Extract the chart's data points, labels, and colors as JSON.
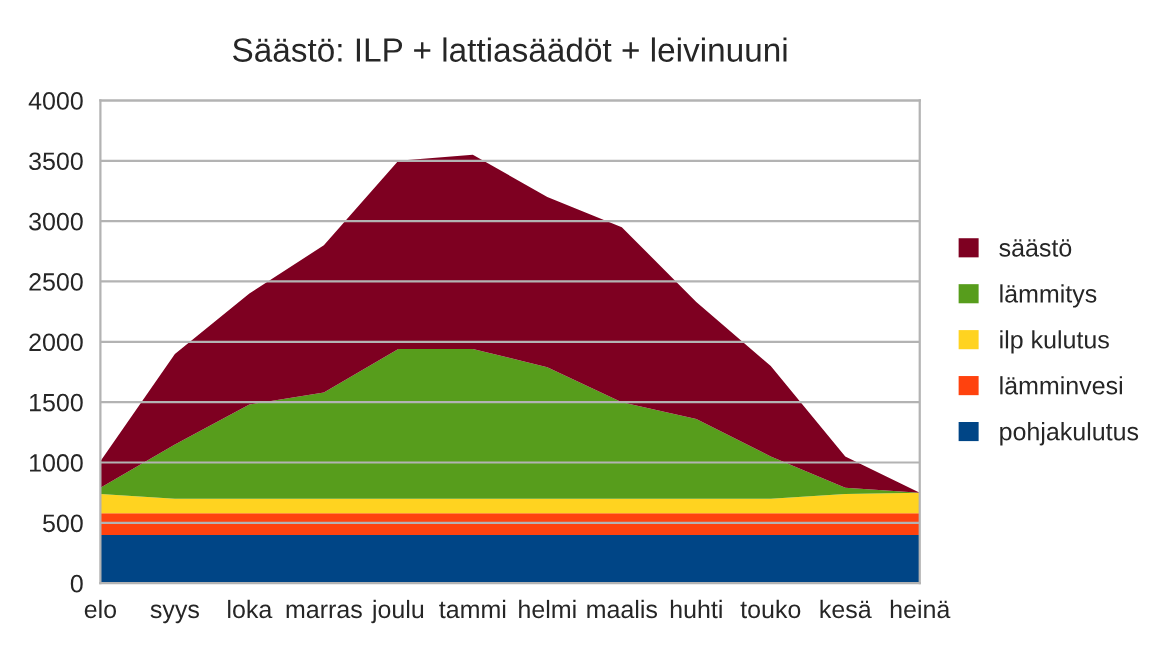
{
  "chart_data": {
    "type": "area",
    "title": "Säästö: ILP + lattiasäädöt + leivinuuni",
    "stacked": true,
    "categories": [
      "elo",
      "syys",
      "loka",
      "marras",
      "joulu",
      "tammi",
      "helmi",
      "maalis",
      "huhti",
      "touko",
      "kesä",
      "heinä"
    ],
    "series": [
      {
        "name": "pohjakulutus",
        "color": "#004586",
        "values": [
          400,
          400,
          400,
          400,
          400,
          400,
          400,
          400,
          400,
          400,
          400,
          400
        ]
      },
      {
        "name": "lämminvesi",
        "color": "#ff420e",
        "values": [
          180,
          180,
          180,
          180,
          180,
          180,
          180,
          180,
          180,
          180,
          180,
          180
        ]
      },
      {
        "name": "ilp kulutus",
        "color": "#ffd320",
        "values": [
          160,
          120,
          120,
          120,
          120,
          120,
          120,
          120,
          120,
          120,
          160,
          170
        ]
      },
      {
        "name": "lämmitys",
        "color": "#579d1c",
        "values": [
          50,
          450,
          780,
          880,
          1240,
          1240,
          1090,
          800,
          660,
          350,
          50,
          0
        ]
      },
      {
        "name": "säästö",
        "color": "#7e0021",
        "values": [
          220,
          750,
          920,
          1220,
          1560,
          1610,
          1410,
          1450,
          970,
          750,
          260,
          0
        ]
      }
    ],
    "ylim": [
      0,
      4000
    ],
    "yticks": [
      0,
      500,
      1000,
      1500,
      2000,
      2500,
      3000,
      3500,
      4000
    ],
    "grid": "y",
    "legend": "right"
  }
}
